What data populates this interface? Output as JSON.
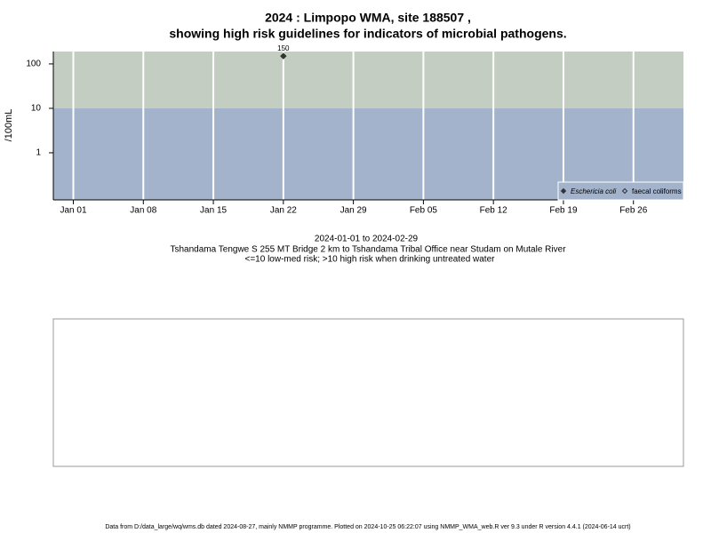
{
  "chart_data": {
    "type": "scatter",
    "title": "2024 : Limpopo WMA, site 188507 ,",
    "subtitle": "showing high risk guidelines for indicators of microbial pathogens.",
    "ylabel": "/100mL",
    "x": [
      "2024-01-22"
    ],
    "series": [
      {
        "name": "Eschericia coli",
        "color": "#333333",
        "marker": "filled",
        "values": [
          150
        ]
      },
      {
        "name": "faecal coliforms",
        "color": "#333333",
        "marker": "open",
        "values": [
          null
        ]
      }
    ],
    "xlim": [
      "2023-12-30",
      "2024-03-02"
    ],
    "xticks": [
      {
        "value": "2024-01-01",
        "label": "Jan 01"
      },
      {
        "value": "2024-01-08",
        "label": "Jan 08"
      },
      {
        "value": "2024-01-15",
        "label": "Jan 15"
      },
      {
        "value": "2024-01-22",
        "label": "Jan 22"
      },
      {
        "value": "2024-01-29",
        "label": "Jan 29"
      },
      {
        "value": "2024-02-05",
        "label": "Feb 05"
      },
      {
        "value": "2024-02-12",
        "label": "Feb 12"
      },
      {
        "value": "2024-02-19",
        "label": "Feb 19"
      },
      {
        "value": "2024-02-26",
        "label": "Feb 26"
      }
    ],
    "ylim": [
      0.087,
      190
    ],
    "yticks": [
      1,
      10,
      100
    ],
    "log_y": true,
    "threshold": 10,
    "band_colors": {
      "low": "#a3b3cb",
      "high": "#c3cdc1"
    },
    "grid": "x",
    "legend": "bottom-right",
    "notes": [
      "2024-01-01 to 2024-02-29",
      "Tshandama Tengwe S 255 MT Bridge 2 km to Tshandama Tribal Office near Studam on Mutale River",
      "<=10 low-med risk; >10 high risk when drinking untreated water"
    ]
  },
  "footer": "Data from D:/data_large/wq/wms.db dated 2024-08-27, mainly NMMP programme. Plotted on 2024-10-25 06:22:07 using NMMP_WMA_web.R ver 9.3 under R version 4.4.1 (2024-06-14 ucrt)"
}
